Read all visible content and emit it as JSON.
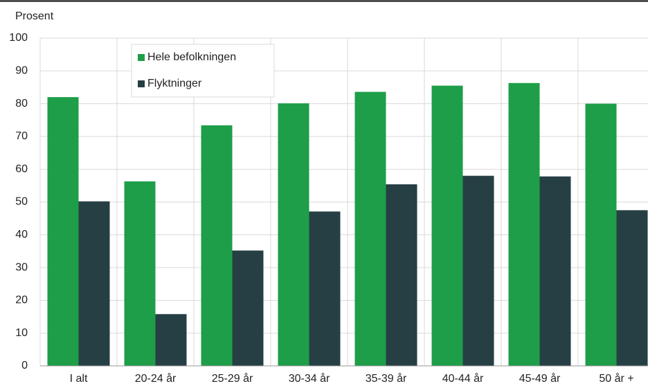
{
  "chart_data": {
    "type": "bar",
    "y_axis_label": "Prosent",
    "categories": [
      "I alt",
      "20-24 år",
      "25-29 år",
      "30-34 år",
      "35-39 år",
      "40-44 år",
      "45-49 år",
      "50 år +"
    ],
    "series": [
      {
        "name": "Hele befolkningen",
        "color": "#1e9e48",
        "values": [
          82,
          56.3,
          73.4,
          80.1,
          83.6,
          85.5,
          86.3,
          80
        ]
      },
      {
        "name": "Flyktninger",
        "color": "#263f44",
        "values": [
          50.2,
          15.8,
          35.2,
          47.1,
          55.4,
          58,
          57.8,
          47.5
        ]
      }
    ],
    "ylim": [
      0,
      100
    ],
    "yticks": [
      0,
      10,
      20,
      30,
      40,
      50,
      60,
      70,
      80,
      90,
      100
    ],
    "grid": true
  }
}
